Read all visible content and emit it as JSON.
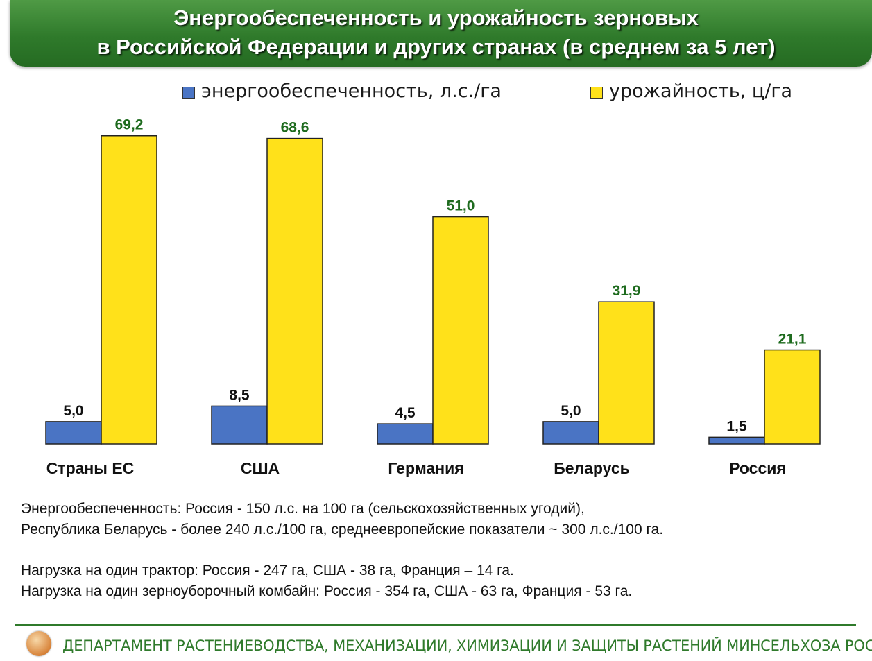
{
  "header": {
    "title_line1": "Энергообеспеченность и урожайность зерновых",
    "title_line2": "в Российской Федерации и других странах (в среднем за 5 лет)"
  },
  "chart_data": {
    "type": "bar",
    "categories": [
      "Страны ЕС",
      "США",
      "Германия",
      "Беларусь",
      "Россия"
    ],
    "series": [
      {
        "name": "энергообеспеченность, л.с./га",
        "values": [
          5.0,
          8.5,
          4.5,
          5.0,
          1.5
        ],
        "labels": [
          "5,0",
          "8,5",
          "4,5",
          "5,0",
          "1,5"
        ],
        "color": "#4a74c4"
      },
      {
        "name": "урожайность, ц/га",
        "values": [
          69.2,
          68.6,
          51.0,
          31.9,
          21.1
        ],
        "labels": [
          "69,2",
          "68,6",
          "51,0",
          "31,9",
          "21,1"
        ],
        "color": "#ffe11a"
      }
    ],
    "legend_position": "top",
    "grid": false
  },
  "notes": [
    "Энергообеспеченность: Россия - 150 л.с. на 100 га (сельскохозяйственных угодий),",
    "Республика Беларусь - более 240 л.с./100 га, среднеевропейские показатели ~ 300 л.с./100 га.",
    "Нагрузка на один трактор: Россия - 247 га, США - 38 га, Франция – 14 га.",
    "Нагрузка на один зерноуборочный комбайн: Россия - 354 га, США - 63 га, Франция - 53 га."
  ],
  "footer": {
    "department": "ДЕПАРТАМЕНТ РАСТЕНИЕВОДСТВА, МЕХАНИЗАЦИИ, ХИМИЗАЦИИ И ЗАЩИТЫ РАСТЕНИЙ МИНСЕЛЬХОЗА РОССИИ"
  },
  "colors": {
    "header_green": "#2f7a2b",
    "value_label_green": "#1e6b1e",
    "blue": "#4a74c4",
    "yellow": "#ffe11a"
  }
}
